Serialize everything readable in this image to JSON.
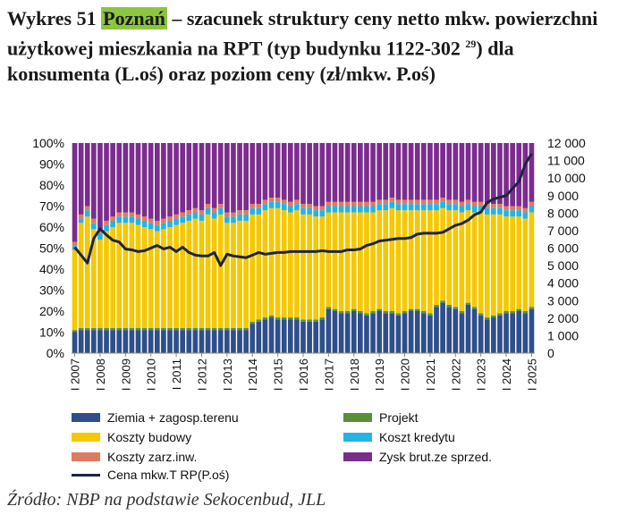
{
  "title": {
    "prefix": "Wykres 51 ",
    "highlight": "Poznań",
    "rest": " – szacunek struktury ceny netto mkw. powierzchni użytkowej mieszkania na RPT (typ budynku 1122-302 ",
    "footnote": "29",
    "suffix": ") dla konsumenta (L.oś) oraz poziom ceny (zł/mkw. P.oś)"
  },
  "chart_data": {
    "type": "bar",
    "stacked": true,
    "y_left": {
      "ticks": [
        "0%",
        "10%",
        "20%",
        "30%",
        "40%",
        "50%",
        "60%",
        "70%",
        "80%",
        "90%",
        "100%"
      ],
      "ylim": [
        0,
        100
      ]
    },
    "y_right": {
      "ticks": [
        "0",
        "1 000",
        "2 000",
        "3 000",
        "4 000",
        "5 000",
        "6 000",
        "7 000",
        "8 000",
        "9 000",
        "10 000",
        "11 000",
        "12 000"
      ],
      "ylim": [
        0,
        12000
      ]
    },
    "x_tick_labels": [
      "I 2007",
      "I 2008",
      "I 2009",
      "I 2010",
      "I 2011",
      "I 2012",
      "I 2013",
      "I 2014",
      "I 2015",
      "I 2016",
      "I 2017",
      "I 2018",
      "I 2019",
      "I 2020",
      "I 2021",
      "I 2022",
      "I 2023",
      "I 2024",
      "I 2025"
    ],
    "start_year": 2007,
    "quarters_count": 73,
    "series": [
      {
        "name": "Ziemia + zagosp.terenu",
        "color": "#2e4f8a",
        "values": [
          10,
          11,
          11,
          11,
          11,
          11,
          11,
          11,
          11,
          11,
          11,
          11,
          11,
          11,
          11,
          11,
          11,
          11,
          11,
          11,
          11,
          11,
          11,
          11,
          11,
          11,
          11,
          11,
          14,
          15,
          16,
          17,
          16,
          16,
          16,
          16,
          15,
          15,
          15,
          16,
          21,
          20,
          19,
          19,
          20,
          19,
          18,
          19,
          20,
          19,
          19,
          18,
          19,
          20,
          20,
          19,
          18,
          22,
          24,
          22,
          21,
          19,
          23,
          21,
          18,
          16,
          17,
          18,
          19,
          19,
          20,
          19,
          21
        ]
      },
      {
        "name": "Projekt",
        "color": "#5a8f3a",
        "values": [
          1,
          1,
          1,
          1,
          1,
          1,
          1,
          1,
          1,
          1,
          1,
          1,
          1,
          1,
          1,
          1,
          1,
          1,
          1,
          1,
          1,
          1,
          1,
          1,
          1,
          1,
          1,
          1,
          1,
          1,
          1,
          1,
          1,
          1,
          1,
          1,
          1,
          1,
          1,
          1,
          1,
          1,
          1,
          1,
          1,
          1,
          1,
          1,
          1,
          1,
          1,
          1,
          1,
          1,
          1,
          1,
          1,
          1,
          1,
          1,
          1,
          1,
          1,
          1,
          1,
          1,
          1,
          1,
          1,
          1,
          1,
          1,
          1
        ]
      },
      {
        "name": "Koszty budowy",
        "color": "#f5c800",
        "values": [
          38,
          50,
          53,
          47,
          42,
          46,
          48,
          50,
          50,
          50,
          49,
          48,
          47,
          46,
          47,
          48,
          49,
          50,
          51,
          52,
          51,
          54,
          52,
          54,
          50,
          50,
          51,
          51,
          51,
          50,
          51,
          51,
          52,
          51,
          50,
          51,
          50,
          50,
          49,
          48,
          45,
          46,
          47,
          47,
          46,
          47,
          48,
          47,
          47,
          48,
          49,
          49,
          48,
          47,
          47,
          48,
          49,
          45,
          44,
          45,
          46,
          47,
          44,
          45,
          48,
          49,
          48,
          47,
          45,
          45,
          44,
          44,
          45
        ]
      },
      {
        "name": "Koszt kredytu",
        "color": "#23b4e6",
        "values": [
          2,
          2,
          3,
          3,
          3,
          3,
          3,
          3,
          3,
          3,
          3,
          3,
          3,
          3,
          3,
          3,
          3,
          3,
          3,
          3,
          3,
          3,
          3,
          3,
          3,
          3,
          3,
          3,
          3,
          3,
          3,
          3,
          3,
          3,
          3,
          3,
          3,
          3,
          3,
          3,
          3,
          3,
          3,
          3,
          3,
          3,
          3,
          3,
          3,
          3,
          3,
          3,
          3,
          3,
          3,
          3,
          3,
          3,
          3,
          3,
          3,
          3,
          3,
          3,
          3,
          3,
          3,
          3,
          3,
          3,
          3,
          3,
          3
        ]
      },
      {
        "name": "Koszty zarz.inw.",
        "color": "#e07a5f",
        "values": [
          2,
          2,
          2,
          2,
          2,
          2,
          2,
          2,
          2,
          2,
          2,
          2,
          2,
          2,
          2,
          2,
          2,
          2,
          2,
          2,
          2,
          2,
          2,
          2,
          2,
          2,
          2,
          2,
          2,
          2,
          2,
          2,
          2,
          2,
          2,
          2,
          2,
          2,
          2,
          2,
          2,
          2,
          2,
          2,
          2,
          2,
          2,
          2,
          2,
          2,
          2,
          2,
          2,
          2,
          2,
          2,
          2,
          2,
          2,
          2,
          2,
          2,
          2,
          2,
          2,
          2,
          2,
          2,
          2,
          2,
          2,
          2,
          2
        ]
      },
      {
        "name": "Zysk brut.ze sprzed.",
        "color": "#7b2d8e",
        "values": [
          47,
          34,
          30,
          36,
          41,
          37,
          35,
          33,
          33,
          33,
          34,
          35,
          36,
          37,
          36,
          35,
          34,
          33,
          32,
          31,
          32,
          29,
          31,
          29,
          33,
          33,
          32,
          32,
          29,
          29,
          27,
          26,
          26,
          27,
          28,
          27,
          29,
          29,
          30,
          30,
          28,
          28,
          28,
          28,
          28,
          28,
          28,
          28,
          27,
          27,
          26,
          27,
          27,
          27,
          27,
          27,
          27,
          27,
          26,
          27,
          27,
          28,
          27,
          28,
          28,
          29,
          29,
          29,
          30,
          30,
          30,
          31,
          28
        ]
      }
    ],
    "line": {
      "name": "Cena mkw.T RP(P.oś)",
      "color": "#1c2541",
      "values": [
        6050,
        5600,
        5150,
        6550,
        7100,
        6750,
        6450,
        6350,
        5950,
        5900,
        5800,
        5850,
        6000,
        6150,
        5950,
        6050,
        5800,
        6050,
        5750,
        5600,
        5550,
        5550,
        5750,
        5000,
        5650,
        5550,
        5500,
        5450,
        5600,
        5750,
        5650,
        5700,
        5750,
        5750,
        5800,
        5800,
        5800,
        5800,
        5800,
        5850,
        5800,
        5800,
        5800,
        5900,
        5900,
        5950,
        6150,
        6250,
        6400,
        6450,
        6500,
        6550,
        6550,
        6600,
        6800,
        6850,
        6850,
        6850,
        6900,
        7100,
        7300,
        7400,
        7600,
        7900,
        8050,
        8600,
        8800,
        8900,
        9000,
        9400,
        9800,
        10800,
        11400
      ]
    }
  },
  "legend": [
    {
      "label": "Ziemia + zagosp.terenu",
      "color": "#2e4f8a",
      "kind": "box"
    },
    {
      "label": "Projekt",
      "color": "#5a8f3a",
      "kind": "box"
    },
    {
      "label": "Koszty budowy",
      "color": "#f5c800",
      "kind": "box"
    },
    {
      "label": "Koszt kredytu",
      "color": "#23b4e6",
      "kind": "box"
    },
    {
      "label": "Koszty zarz.inw.",
      "color": "#e07a5f",
      "kind": "box"
    },
    {
      "label": "Zysk brut.ze sprzed.",
      "color": "#7b2d8e",
      "kind": "box"
    },
    {
      "label": "Cena mkw.T RP(P.oś)",
      "color": "#1c2541",
      "kind": "line"
    }
  ],
  "source": "Źródło: NBP na podstawie Sekocenbud, JLL"
}
